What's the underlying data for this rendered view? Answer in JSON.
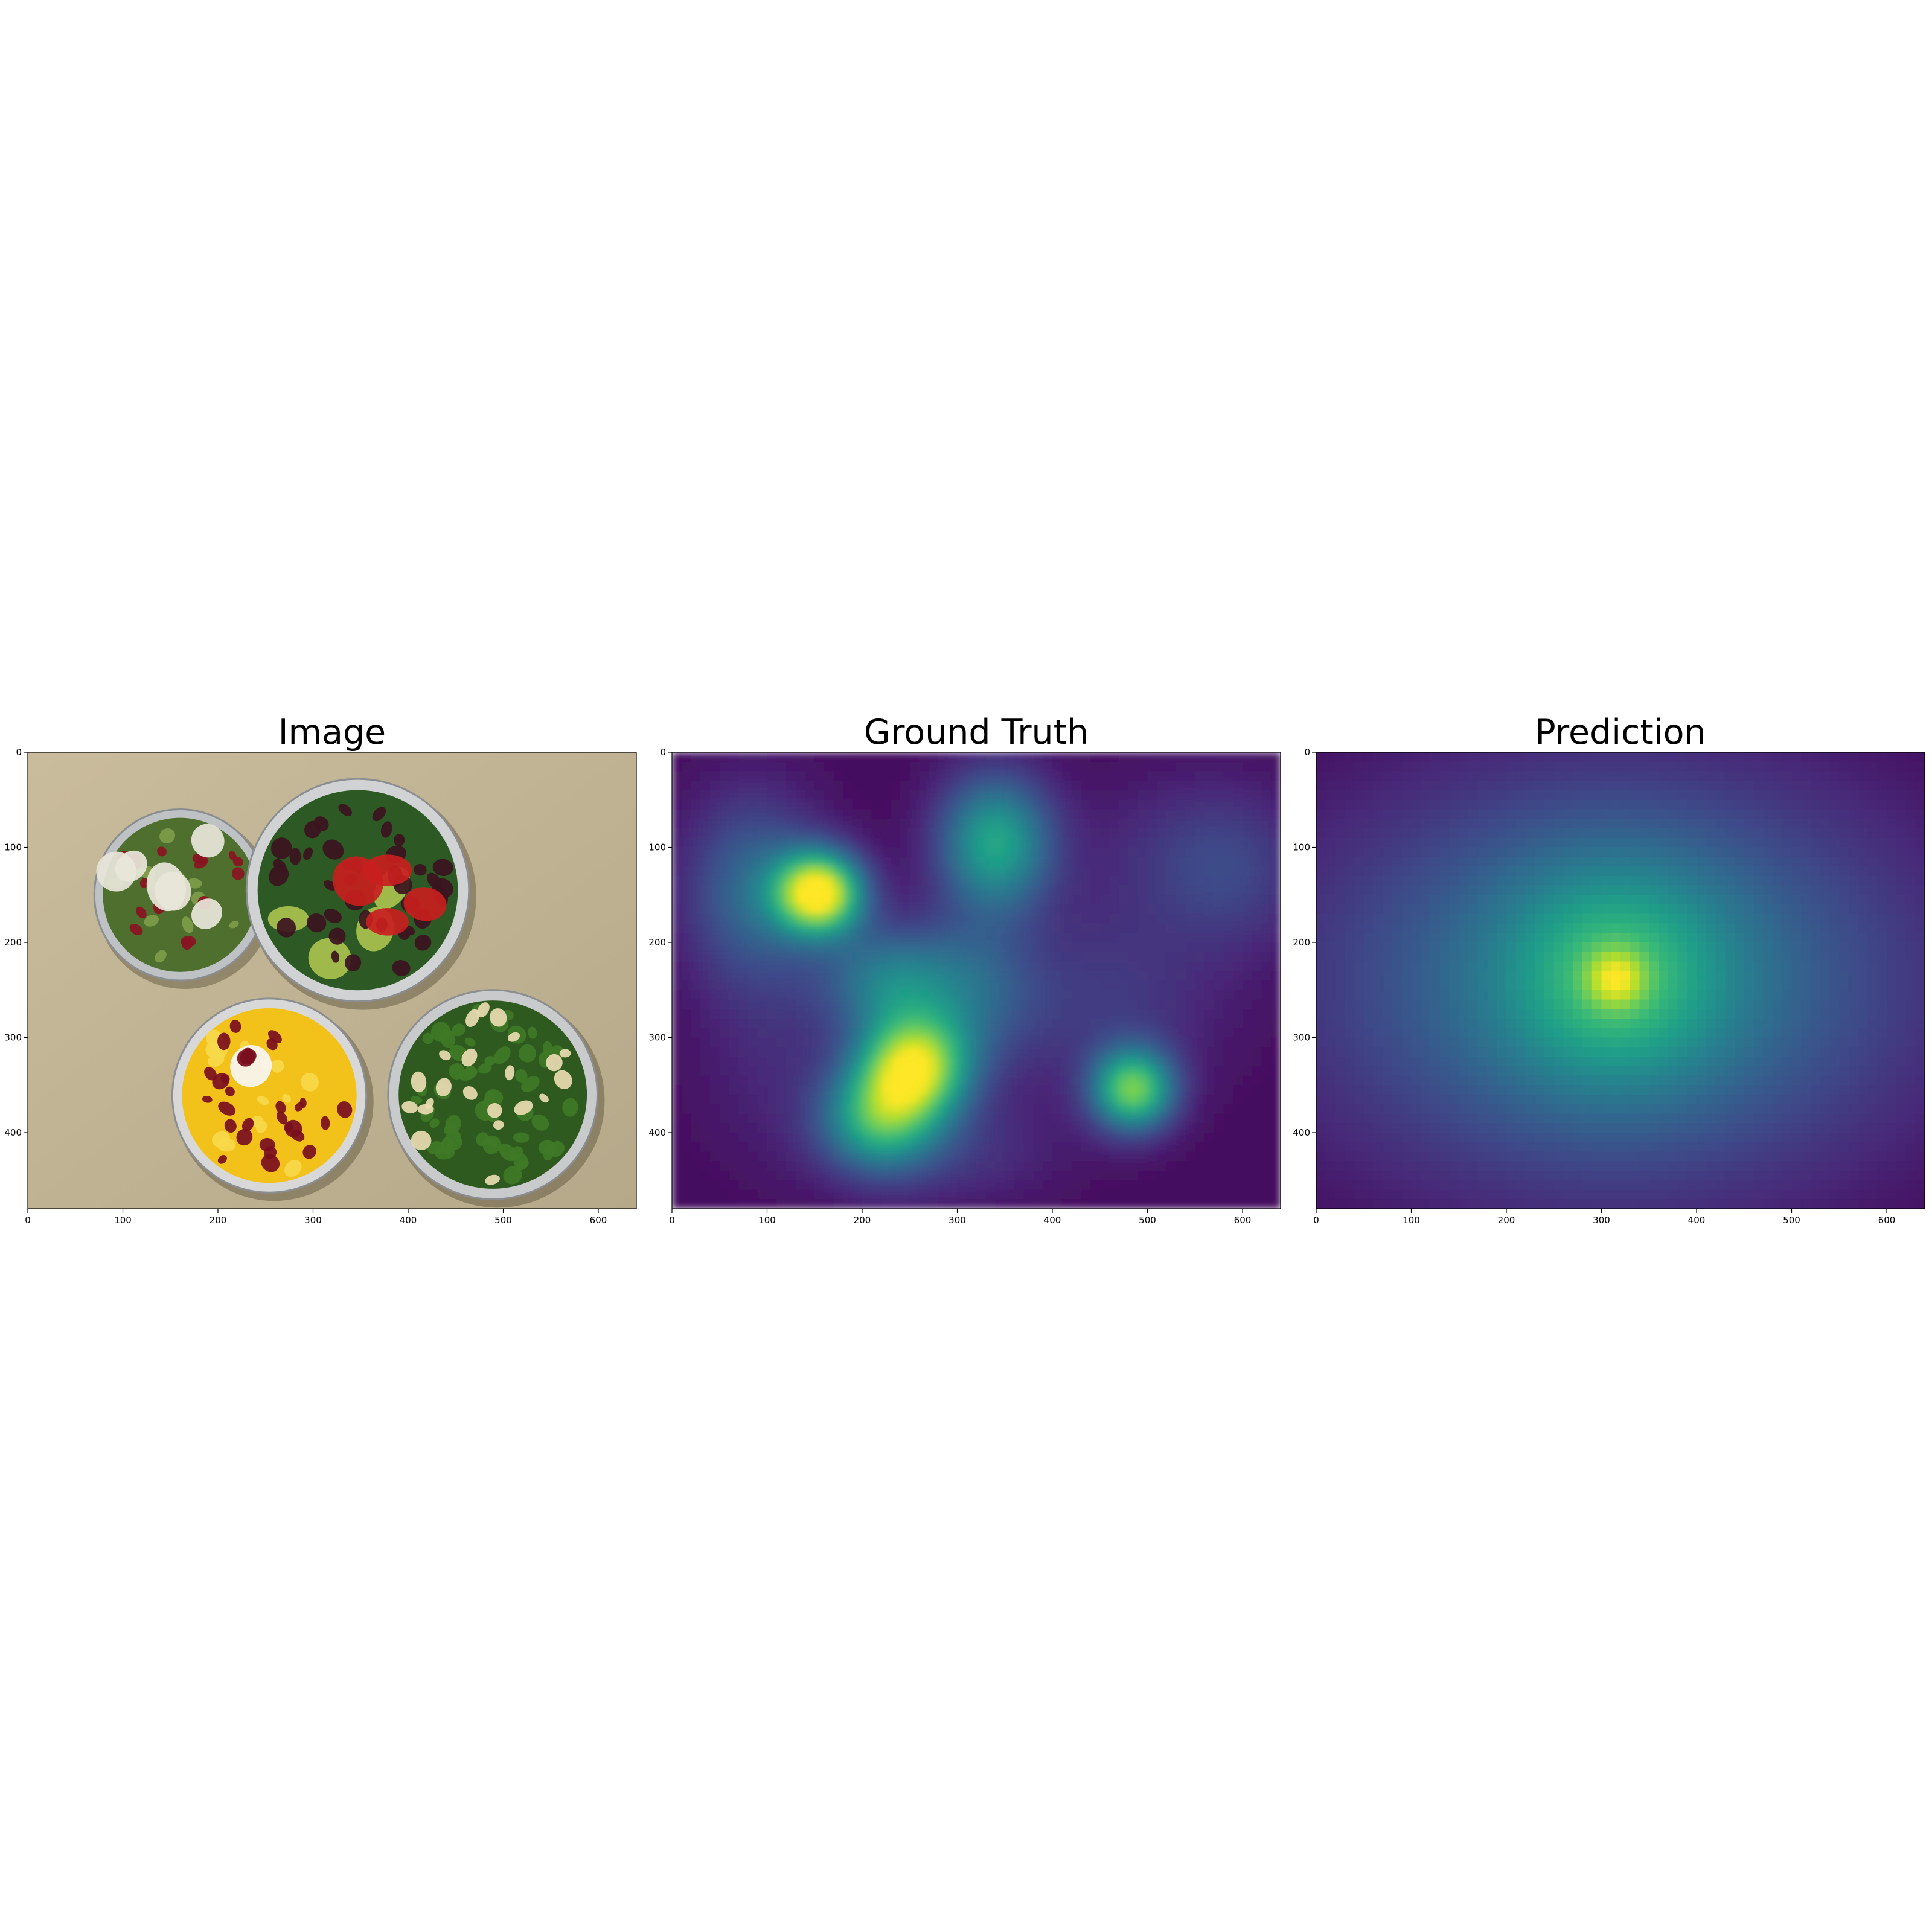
{
  "chart_data": [
    {
      "type": "image",
      "title": "Image",
      "x_ticks": [
        0,
        100,
        200,
        300,
        400,
        500,
        600
      ],
      "y_ticks": [
        0,
        100,
        200,
        300,
        400
      ],
      "xlim": [
        0,
        640
      ],
      "ylim": [
        480,
        0
      ],
      "content": "photo",
      "bowls": [
        {
          "cx": 160,
          "cy": 150,
          "r": 90,
          "rim": "#bfc2c4",
          "fill": "#4e6f2e",
          "items": [
            {
              "color": "#7e9c4a",
              "count": 14
            },
            {
              "color": "#8a1422",
              "count": 18
            },
            {
              "color": "#e8e6da",
              "count": 6
            }
          ]
        },
        {
          "cx": 347,
          "cy": 145,
          "r": 117,
          "rim": "#d0d2d4",
          "fill": "#2d5a24",
          "items": [
            {
              "color": "#a9c24e",
              "count": 4
            },
            {
              "color": "#3b1420",
              "count": 40
            },
            {
              "color": "#c81e1e",
              "count": 4
            }
          ]
        },
        {
          "cx": 254,
          "cy": 361,
          "r": 102,
          "rim": "#d8d8d8",
          "fill": "#f2c21a",
          "items": [
            {
              "color": "#f7d94a",
              "count": 16
            },
            {
              "color": "#f8f6f4",
              "count": 1
            },
            {
              "color": "#7a0e1e",
              "count": 30
            }
          ]
        },
        {
          "cx": 489,
          "cy": 360,
          "r": 110,
          "rim": "#c8cacc",
          "fill": "#2f5a1f",
          "items": [
            {
              "color": "#3f7a26",
              "count": 55
            },
            {
              "color": "#e9dcb2",
              "count": 22
            }
          ]
        }
      ]
    },
    {
      "type": "heatmap",
      "title": "Ground Truth",
      "colormap": "viridis",
      "x_ticks": [
        0,
        100,
        200,
        300,
        400,
        500,
        600
      ],
      "y_ticks": [
        0,
        100,
        200,
        300,
        400
      ],
      "xlim": [
        0,
        640
      ],
      "ylim": [
        480,
        0
      ],
      "background": 0.03,
      "peaks": [
        {
          "x": 155,
          "y": 148,
          "sx": 32,
          "sy": 30,
          "a": 0.97
        },
        {
          "x": 340,
          "y": 95,
          "sx": 42,
          "sy": 50,
          "a": 0.55
        },
        {
          "x": 255,
          "y": 330,
          "sx": 40,
          "sy": 38,
          "a": 0.85
        },
        {
          "x": 218,
          "y": 385,
          "sx": 42,
          "sy": 38,
          "a": 0.55
        },
        {
          "x": 485,
          "y": 355,
          "sx": 30,
          "sy": 30,
          "a": 0.72
        },
        {
          "x": 85,
          "y": 145,
          "sx": 50,
          "sy": 70,
          "a": 0.3
        },
        {
          "x": 230,
          "y": 240,
          "sx": 50,
          "sy": 40,
          "a": 0.38
        },
        {
          "x": 320,
          "y": 250,
          "sx": 45,
          "sy": 55,
          "a": 0.22
        },
        {
          "x": 290,
          "y": 420,
          "sx": 80,
          "sy": 40,
          "a": 0.12
        },
        {
          "x": 450,
          "y": 260,
          "sx": 90,
          "sy": 70,
          "a": 0.14
        },
        {
          "x": 540,
          "y": 110,
          "sx": 70,
          "sy": 60,
          "a": 0.12
        },
        {
          "x": 600,
          "y": 130,
          "sx": 50,
          "sy": 60,
          "a": 0.1
        },
        {
          "x": 110,
          "y": 320,
          "sx": 60,
          "sy": 80,
          "a": 0.08
        }
      ]
    },
    {
      "type": "heatmap",
      "title": "Prediction",
      "colormap": "viridis",
      "x_ticks": [
        0,
        100,
        200,
        300,
        400,
        500,
        600
      ],
      "y_ticks": [
        0,
        100,
        200,
        300,
        400
      ],
      "xlim": [
        0,
        640
      ],
      "ylim": [
        480,
        0
      ],
      "background": 0.0,
      "peaks": [
        {
          "x": 315,
          "y": 240,
          "sx": 230,
          "sy": 160,
          "a": 0.42
        },
        {
          "x": 315,
          "y": 235,
          "sx": 80,
          "sy": 80,
          "a": 0.3
        },
        {
          "x": 315,
          "y": 238,
          "sx": 22,
          "sy": 22,
          "a": 0.3
        }
      ]
    }
  ]
}
